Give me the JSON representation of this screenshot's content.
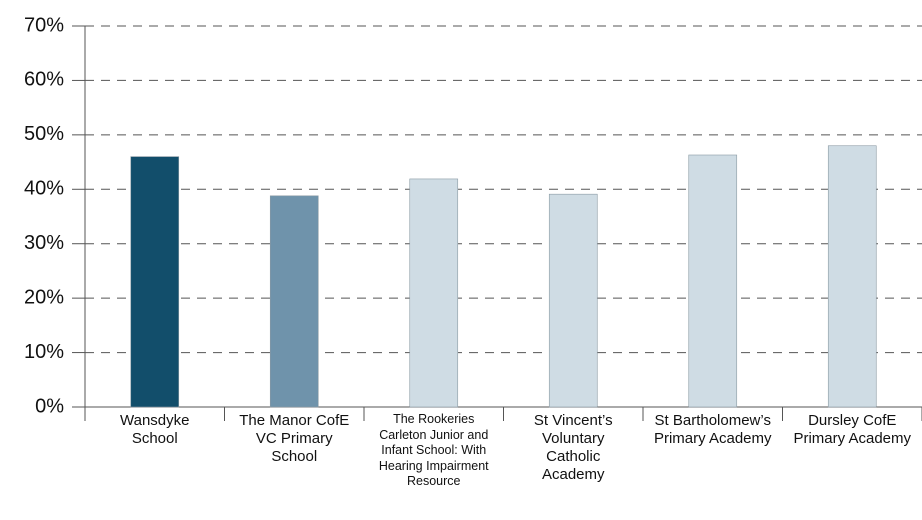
{
  "chart_data": {
    "type": "bar",
    "categories": [
      "Wansdyke School",
      "The Manor CofE VC Primary School",
      "The Rookeries Carleton Junior and Infant School: With Hearing Impairment Resource",
      "St Vincent’s Voluntary Catholic Academy",
      "St Bartholomew’s Primary Academy",
      "Dursley CofE Primary Academy"
    ],
    "values": [
      46,
      38.8,
      41.9,
      39.1,
      46.3,
      48
    ],
    "colors": [
      "#124e6b",
      "#6f93ab",
      "#cfdce4",
      "#cfdce4",
      "#cfdce4",
      "#cfdce4"
    ],
    "ylim": [
      0,
      70
    ],
    "yticks": [
      {
        "value": 0,
        "label": "0%"
      },
      {
        "value": 10,
        "label": "10%"
      },
      {
        "value": 20,
        "label": "20%"
      },
      {
        "value": 30,
        "label": "30%"
      },
      {
        "value": 40,
        "label": "40%"
      },
      {
        "value": 50,
        "label": "50%"
      },
      {
        "value": 60,
        "label": "60%"
      },
      {
        "value": 70,
        "label": "70%"
      }
    ],
    "grid": true
  }
}
